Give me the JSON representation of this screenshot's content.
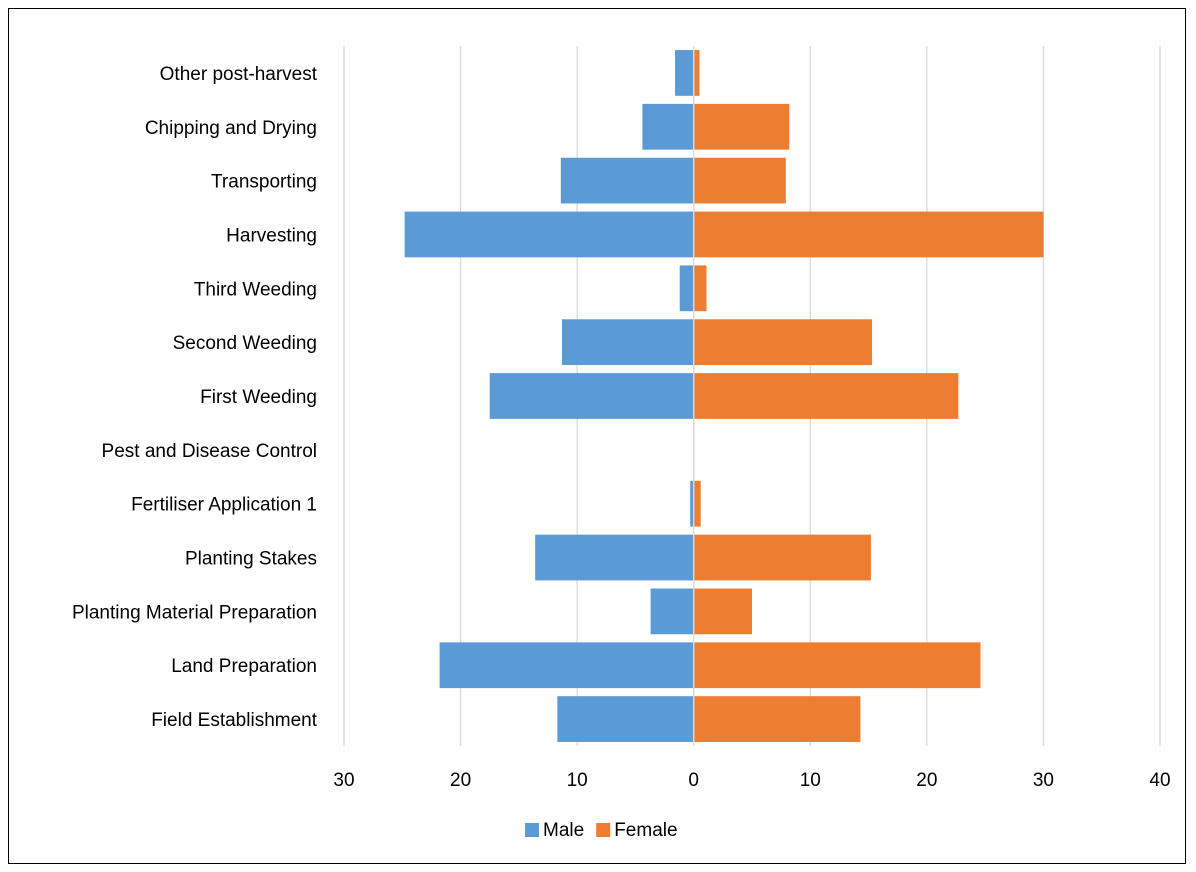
{
  "chart_data": {
    "type": "bar",
    "orientation": "horizontal",
    "categories": [
      "Field Establishment",
      "Land Preparation",
      "Planting Material Preparation",
      "Planting Stakes",
      "Fertiliser Application 1",
      "Pest and Disease Control",
      "First Weeding",
      "Second Weeding",
      "Third Weeding",
      "Harvesting",
      "Transporting",
      "Chipping and Drying",
      "Other post-harvest"
    ],
    "series": [
      {
        "name": "Male",
        "color": "#5B9BD5",
        "values": [
          -11.7,
          -21.8,
          -3.7,
          -13.6,
          -0.3,
          0,
          -17.5,
          -11.3,
          -1.2,
          -24.8,
          -11.4,
          -4.4,
          -1.6
        ]
      },
      {
        "name": "Female",
        "color": "#ED7D31",
        "values": [
          14.3,
          24.6,
          5.0,
          15.2,
          0.6,
          0,
          22.7,
          15.3,
          1.1,
          30.0,
          7.9,
          8.2,
          0.5
        ]
      }
    ],
    "xlim": [
      -30,
      40
    ],
    "x_ticks": [
      -30,
      -20,
      -10,
      0,
      10,
      20,
      30,
      40
    ],
    "x_tick_labels": [
      "30",
      "20",
      "10",
      "0",
      "10",
      "20",
      "30",
      "40"
    ],
    "grid": true,
    "legend": "bottom",
    "title": "",
    "xlabel": "",
    "ylabel": ""
  }
}
